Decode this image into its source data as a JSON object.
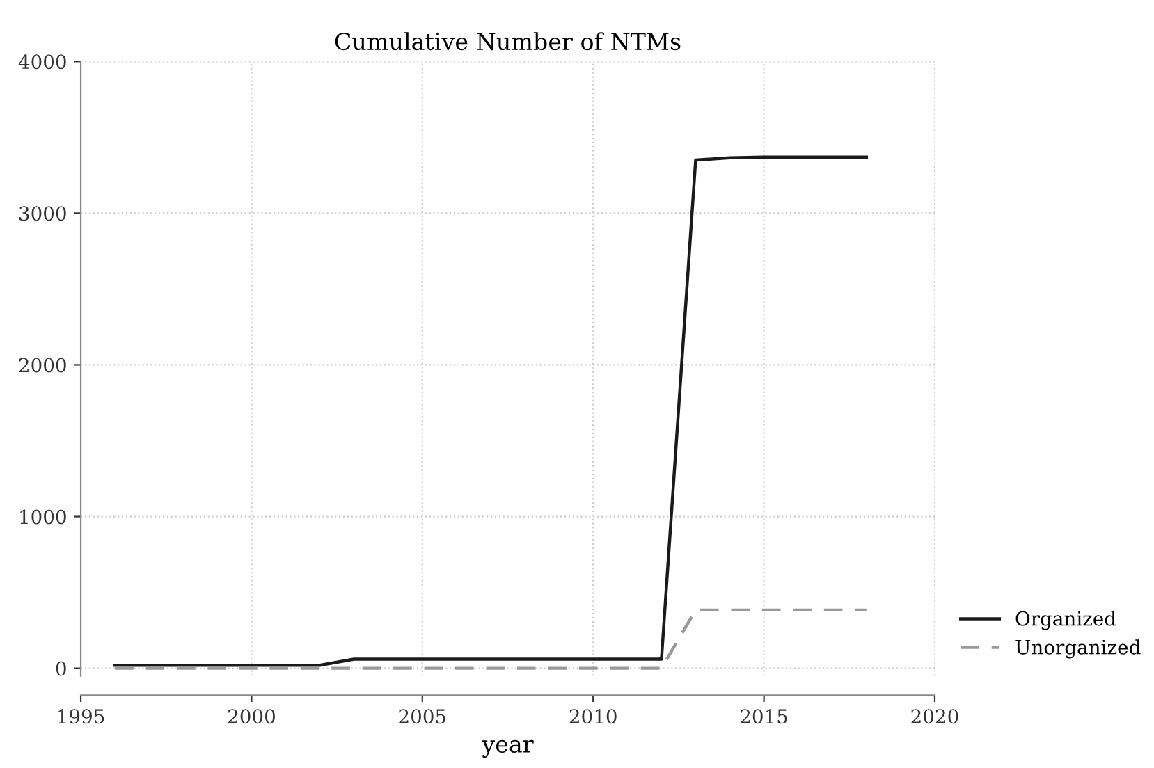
{
  "chart_data": {
    "type": "line",
    "title": "Cumulative Number of NTMs",
    "xlabel": "year",
    "x": [
      1996,
      1997,
      1998,
      1999,
      2000,
      2001,
      2002,
      2003,
      2004,
      2005,
      2006,
      2007,
      2008,
      2009,
      2010,
      2011,
      2012,
      2013,
      2014,
      2015,
      2016,
      2017,
      2018
    ],
    "series": [
      {
        "name": "Organized",
        "color": "#1a1a1a",
        "line_style": "solid",
        "values": [
          20,
          20,
          20,
          20,
          20,
          20,
          20,
          60,
          60,
          60,
          60,
          60,
          60,
          60,
          60,
          60,
          60,
          3350,
          3365,
          3370,
          3370,
          3370,
          3370
        ]
      },
      {
        "name": "Unorganized",
        "color": "#999999",
        "line_style": "dashed",
        "values": [
          0,
          0,
          0,
          0,
          0,
          0,
          0,
          0,
          0,
          0,
          0,
          0,
          0,
          0,
          0,
          0,
          0,
          384,
          384,
          384,
          384,
          384,
          384
        ]
      }
    ],
    "xlim": [
      1995,
      2020
    ],
    "xticks": [
      1995,
      2000,
      2005,
      2010,
      2015,
      2020
    ],
    "ylim": [
      -50,
      4000
    ],
    "yticks": [
      0,
      1000,
      2000,
      3000,
      4000
    ],
    "grid": true,
    "legend": "bottom right",
    "marker": "none"
  }
}
